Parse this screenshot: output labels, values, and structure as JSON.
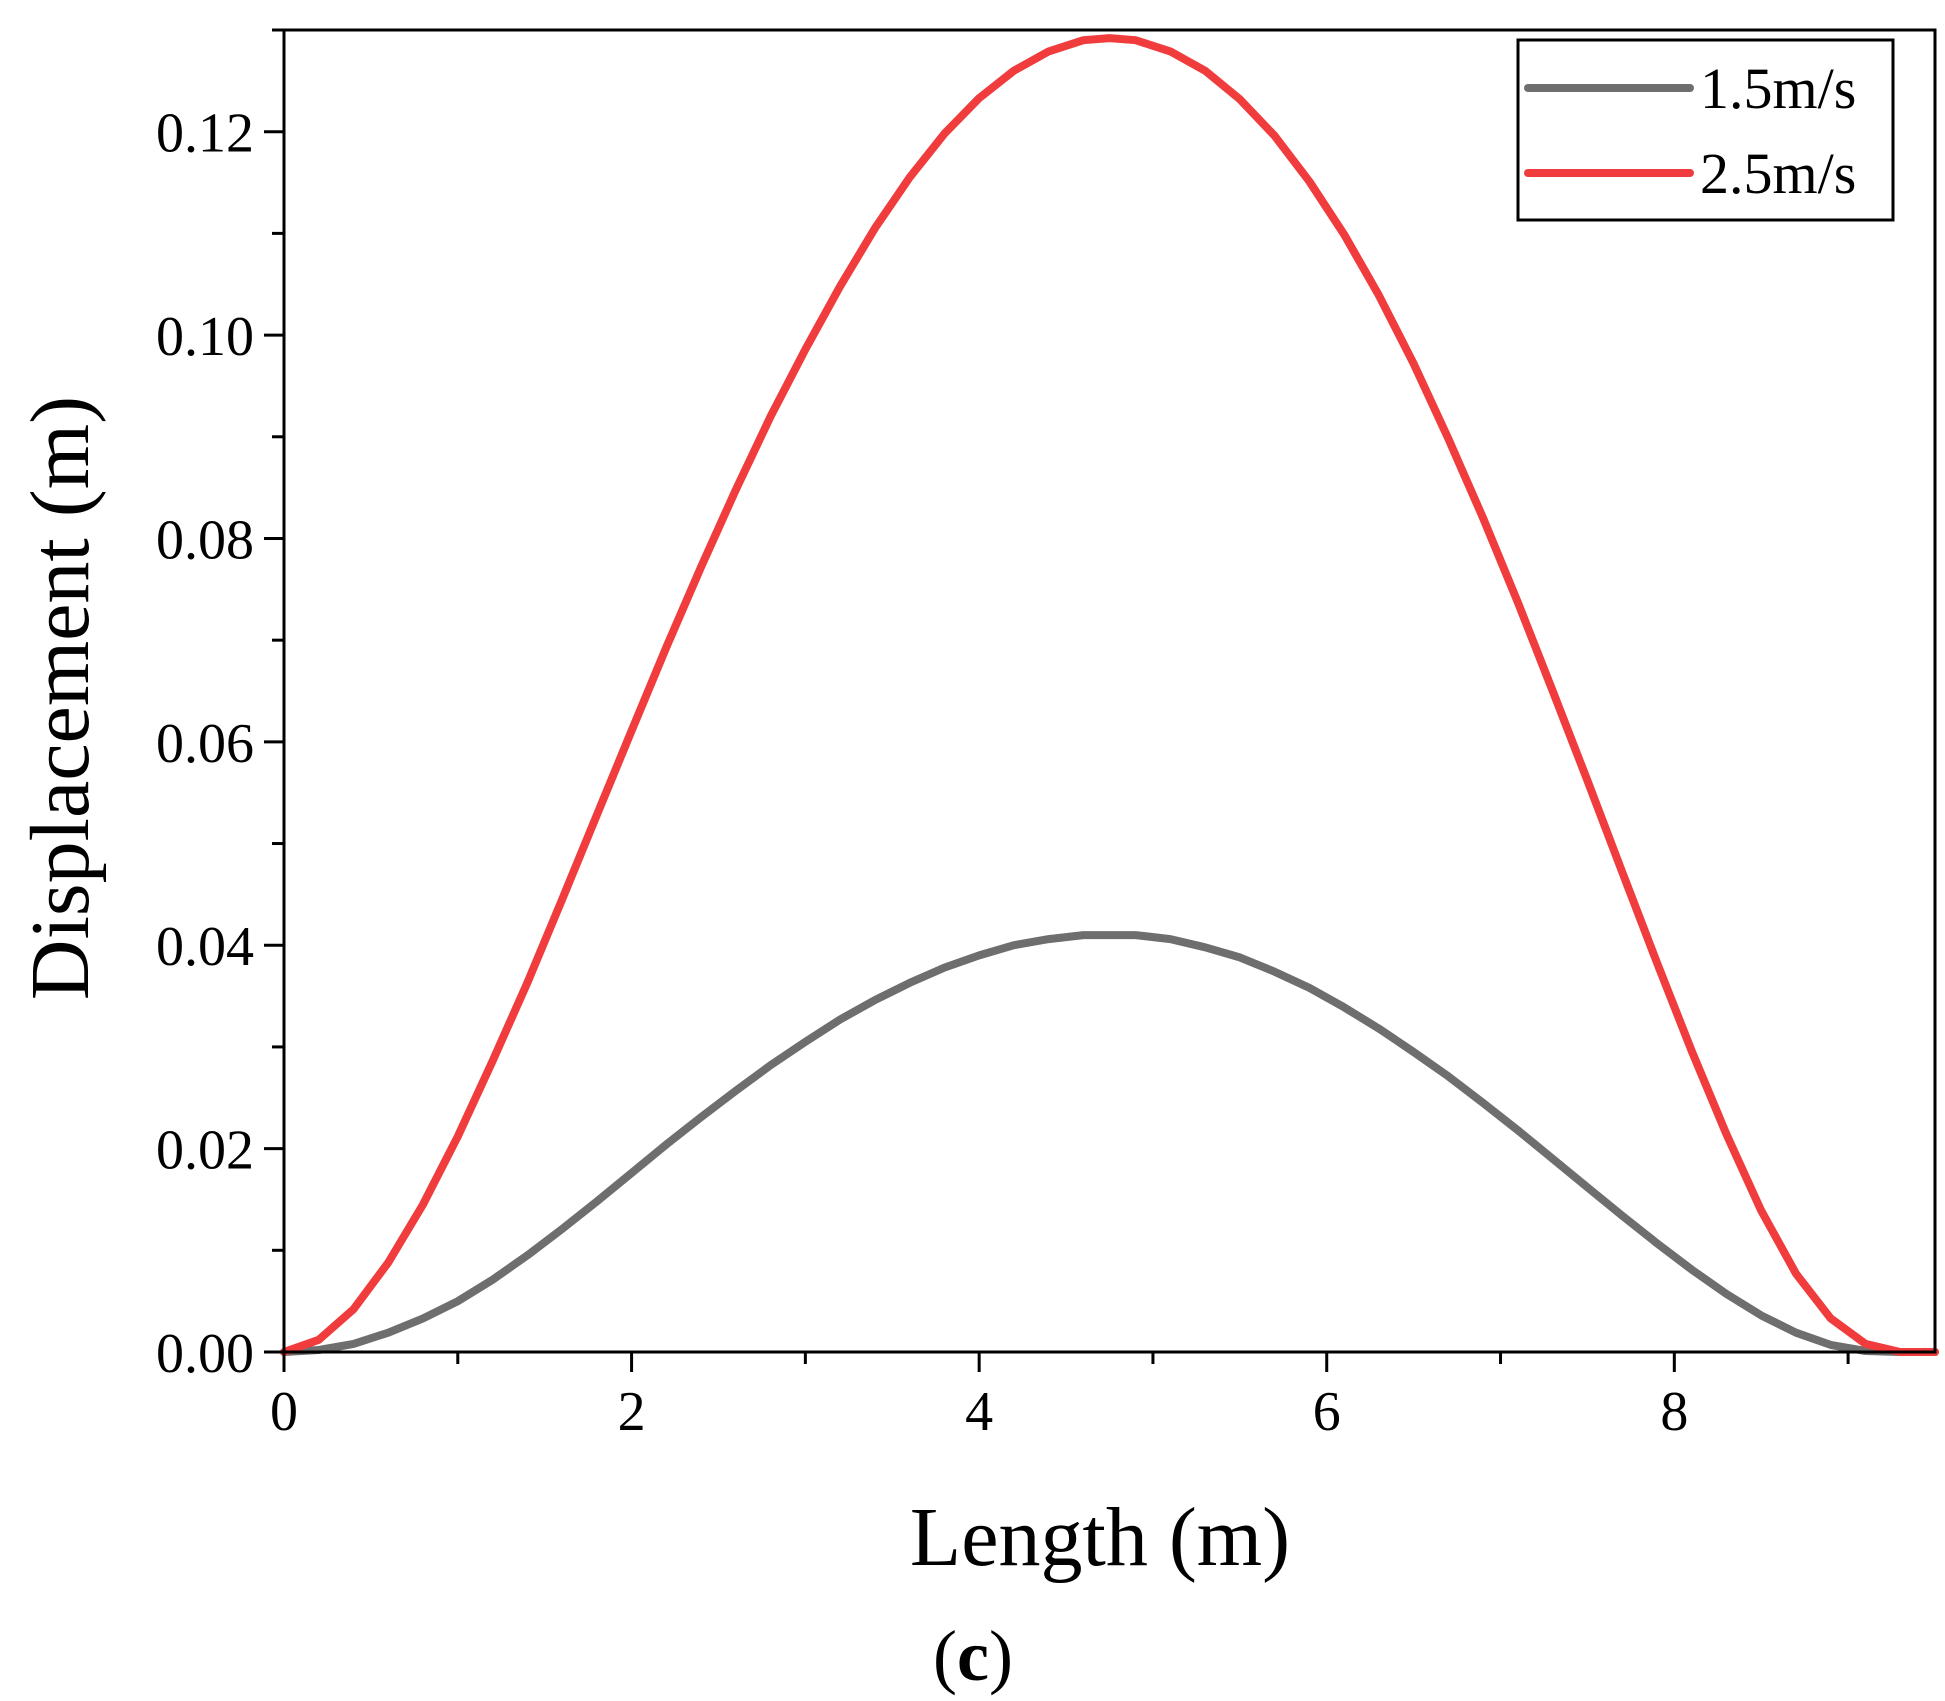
{
  "chart_data": {
    "type": "line",
    "title": "",
    "xlabel": "Length (m)",
    "ylabel": "Displacement (m)",
    "xlim": [
      0,
      9.5
    ],
    "ylim": [
      0,
      0.13
    ],
    "xticks": [
      0,
      2,
      4,
      6,
      8
    ],
    "xtick_labels": [
      "0",
      "2",
      "4",
      "6",
      "8"
    ],
    "yticks": [
      0,
      0.02,
      0.04,
      0.06,
      0.08,
      0.1,
      0.12
    ],
    "ytick_labels": [
      "0.00",
      "0.02",
      "0.04",
      "0.06",
      "0.08",
      "0.10",
      "0.12"
    ],
    "grid": false,
    "legend_position": "top-right",
    "panel_label": {
      "open": "(",
      "letter": "c",
      "close": ")"
    },
    "x": [
      0,
      0.2,
      0.4,
      0.6,
      0.8,
      1.0,
      1.2,
      1.4,
      1.6,
      1.8,
      2.0,
      2.2,
      2.4,
      2.6,
      2.8,
      3.0,
      3.2,
      3.4,
      3.6,
      3.8,
      4.0,
      4.2,
      4.4,
      4.6,
      4.75,
      4.9,
      5.1,
      5.3,
      5.5,
      5.7,
      5.9,
      6.1,
      6.3,
      6.5,
      6.7,
      6.9,
      7.1,
      7.3,
      7.5,
      7.7,
      7.9,
      8.1,
      8.3,
      8.5,
      8.7,
      8.9,
      9.1,
      9.3,
      9.5
    ],
    "series": [
      {
        "name": "1.5m/s",
        "color": "#6e6e6e",
        "values": [
          0.0,
          0.0002,
          0.0008,
          0.0019,
          0.0033,
          0.005,
          0.0071,
          0.0095,
          0.0121,
          0.0148,
          0.0176,
          0.0204,
          0.0231,
          0.0257,
          0.0282,
          0.0305,
          0.0327,
          0.0346,
          0.0363,
          0.0378,
          0.039,
          0.04,
          0.0406,
          0.041,
          0.041,
          0.041,
          0.0406,
          0.0398,
          0.0388,
          0.0374,
          0.0358,
          0.0339,
          0.0318,
          0.0295,
          0.0271,
          0.0245,
          0.0218,
          0.019,
          0.0162,
          0.0134,
          0.0107,
          0.0081,
          0.0057,
          0.0036,
          0.0019,
          0.0007,
          0.0001,
          0.0,
          0.0
        ]
      },
      {
        "name": "2.5m/s",
        "color": "#f03c3c",
        "values": [
          0.0,
          0.0012,
          0.0042,
          0.0088,
          0.0145,
          0.0212,
          0.0286,
          0.0363,
          0.0445,
          0.0528,
          0.0611,
          0.0693,
          0.0772,
          0.0848,
          0.092,
          0.0986,
          0.1048,
          0.1105,
          0.1155,
          0.1198,
          0.1233,
          0.126,
          0.1279,
          0.129,
          0.1292,
          0.129,
          0.1279,
          0.126,
          0.1232,
          0.1196,
          0.1151,
          0.1099,
          0.1039,
          0.0972,
          0.0898,
          0.082,
          0.0737,
          0.065,
          0.0562,
          0.0472,
          0.0383,
          0.0296,
          0.0214,
          0.0139,
          0.0077,
          0.0033,
          0.0008,
          0.0,
          0.0
        ]
      }
    ]
  }
}
